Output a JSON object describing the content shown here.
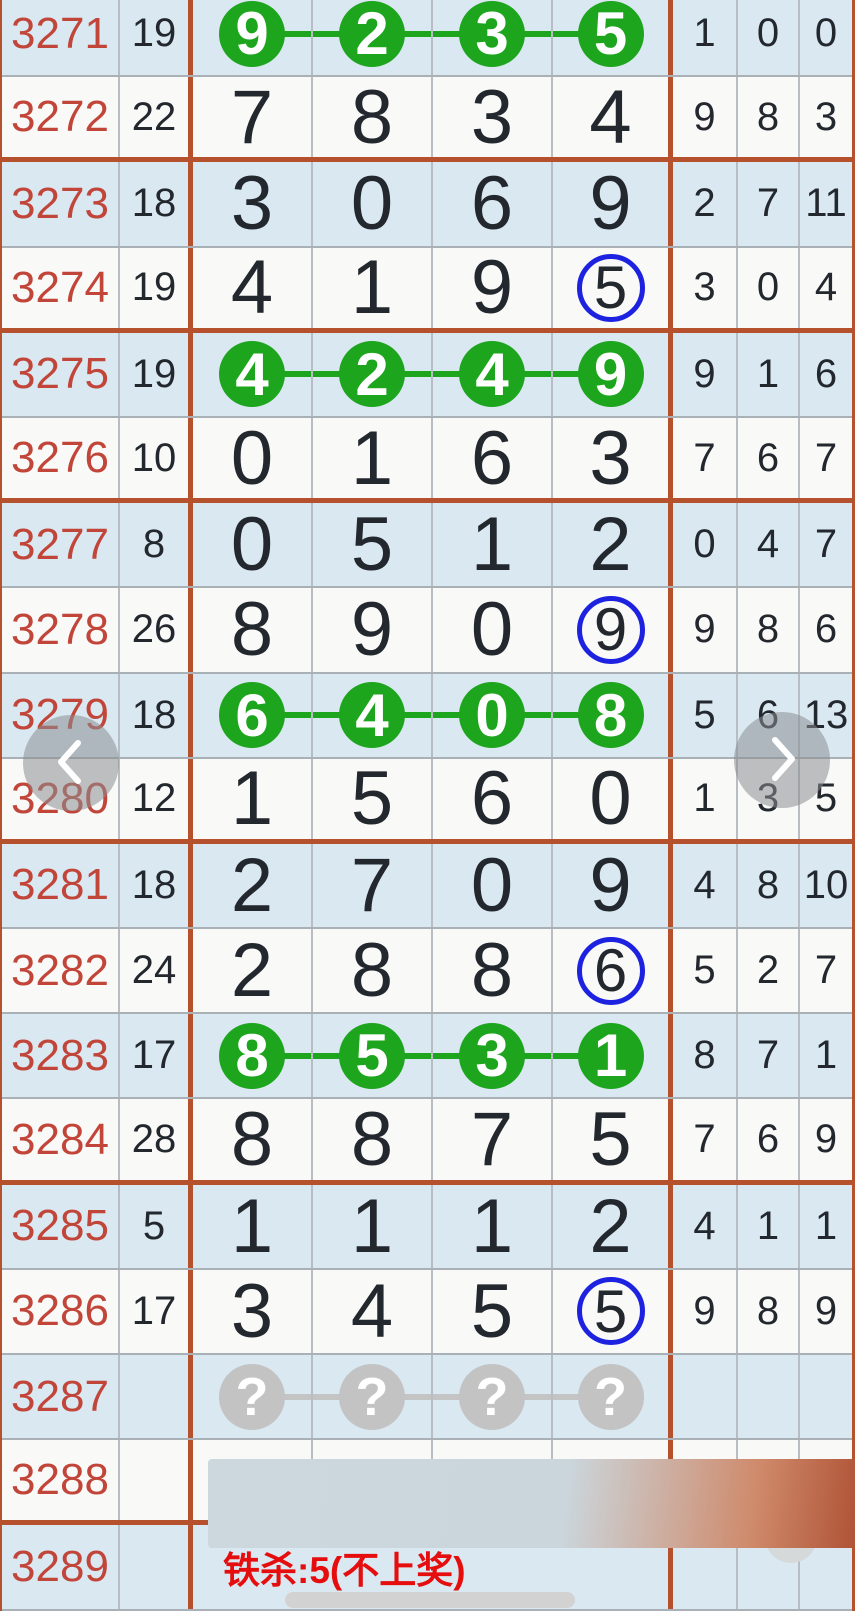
{
  "table": {
    "rows": [
      {
        "period": "3271",
        "sum": "19",
        "main": [
          "9",
          "2",
          "3",
          "5"
        ],
        "mark": "green-all",
        "right": [
          "1",
          "0",
          "0"
        ],
        "group_end": false
      },
      {
        "period": "3272",
        "sum": "22",
        "main": [
          "7",
          "8",
          "3",
          "4"
        ],
        "mark": "none",
        "right": [
          "9",
          "8",
          "3"
        ],
        "group_end": true
      },
      {
        "period": "3273",
        "sum": "18",
        "main": [
          "3",
          "0",
          "6",
          "9"
        ],
        "mark": "none",
        "right": [
          "2",
          "7",
          "11"
        ],
        "group_end": false
      },
      {
        "period": "3274",
        "sum": "19",
        "main": [
          "4",
          "1",
          "9",
          "5"
        ],
        "mark": "blue-last",
        "right": [
          "3",
          "0",
          "4"
        ],
        "group_end": true
      },
      {
        "period": "3275",
        "sum": "19",
        "main": [
          "4",
          "2",
          "4",
          "9"
        ],
        "mark": "green-all",
        "right": [
          "9",
          "1",
          "6"
        ],
        "group_end": false
      },
      {
        "period": "3276",
        "sum": "10",
        "main": [
          "0",
          "1",
          "6",
          "3"
        ],
        "mark": "none",
        "right": [
          "7",
          "6",
          "7"
        ],
        "group_end": true
      },
      {
        "period": "3277",
        "sum": "8",
        "main": [
          "0",
          "5",
          "1",
          "2"
        ],
        "mark": "none",
        "right": [
          "0",
          "4",
          "7"
        ],
        "group_end": false
      },
      {
        "period": "3278",
        "sum": "26",
        "main": [
          "8",
          "9",
          "0",
          "9"
        ],
        "mark": "blue-last",
        "right": [
          "9",
          "8",
          "6"
        ],
        "group_end": false
      },
      {
        "period": "3279",
        "sum": "18",
        "main": [
          "6",
          "4",
          "0",
          "8"
        ],
        "mark": "green-all",
        "right": [
          "5",
          "6",
          "13"
        ],
        "group_end": false
      },
      {
        "period": "3280",
        "sum": "12",
        "main": [
          "1",
          "5",
          "6",
          "0"
        ],
        "mark": "none",
        "right": [
          "1",
          "3",
          "5"
        ],
        "group_end": true
      },
      {
        "period": "3281",
        "sum": "18",
        "main": [
          "2",
          "7",
          "0",
          "9"
        ],
        "mark": "none",
        "right": [
          "4",
          "8",
          "10"
        ],
        "group_end": false
      },
      {
        "period": "3282",
        "sum": "24",
        "main": [
          "2",
          "8",
          "8",
          "6"
        ],
        "mark": "blue-last",
        "right": [
          "5",
          "2",
          "7"
        ],
        "group_end": false
      },
      {
        "period": "3283",
        "sum": "17",
        "main": [
          "8",
          "5",
          "3",
          "1"
        ],
        "mark": "green-all",
        "right": [
          "8",
          "7",
          "1"
        ],
        "group_end": false
      },
      {
        "period": "3284",
        "sum": "28",
        "main": [
          "8",
          "8",
          "7",
          "5"
        ],
        "mark": "none",
        "right": [
          "7",
          "6",
          "9"
        ],
        "group_end": true
      },
      {
        "period": "3285",
        "sum": "5",
        "main": [
          "1",
          "1",
          "1",
          "2"
        ],
        "mark": "none",
        "right": [
          "4",
          "1",
          "1"
        ],
        "group_end": false
      },
      {
        "period": "3286",
        "sum": "17",
        "main": [
          "3",
          "4",
          "5",
          "5"
        ],
        "mark": "blue-last",
        "right": [
          "9",
          "8",
          "9"
        ],
        "group_end": false
      },
      {
        "period": "3287",
        "sum": "",
        "main": [
          "?",
          "?",
          "?",
          "?"
        ],
        "mark": "question",
        "right": [
          "",
          "",
          ""
        ],
        "group_end": false
      },
      {
        "period": "3288",
        "sum": "",
        "main": [
          "",
          "",
          "",
          ""
        ],
        "mark": "none",
        "right": [
          "",
          "",
          ""
        ],
        "group_end": true
      },
      {
        "period": "3289",
        "sum": "",
        "main": [],
        "mark": "note",
        "note": "铁杀:5(不上奖)",
        "right": [
          "",
          "",
          ""
        ],
        "group_end": false
      }
    ]
  },
  "nav": {
    "prev_icon": "chevron-left-icon",
    "next_icon": "chevron-right-icon"
  },
  "colors": {
    "row_blue": "#d9e8f1",
    "row_white": "#f9f9f7",
    "grid_line": "#a9b0b6",
    "group_border": "#b5512c",
    "period_text": "#c2453a",
    "digit_text": "#23272e",
    "win_green": "#1ea51e",
    "mark_blue": "#1c22e0",
    "pending_gray": "#c3c3c3",
    "note_red": "#e50d0d",
    "banner_gradient_from": "#ccd7de",
    "banner_gradient_to": "#b05336"
  }
}
